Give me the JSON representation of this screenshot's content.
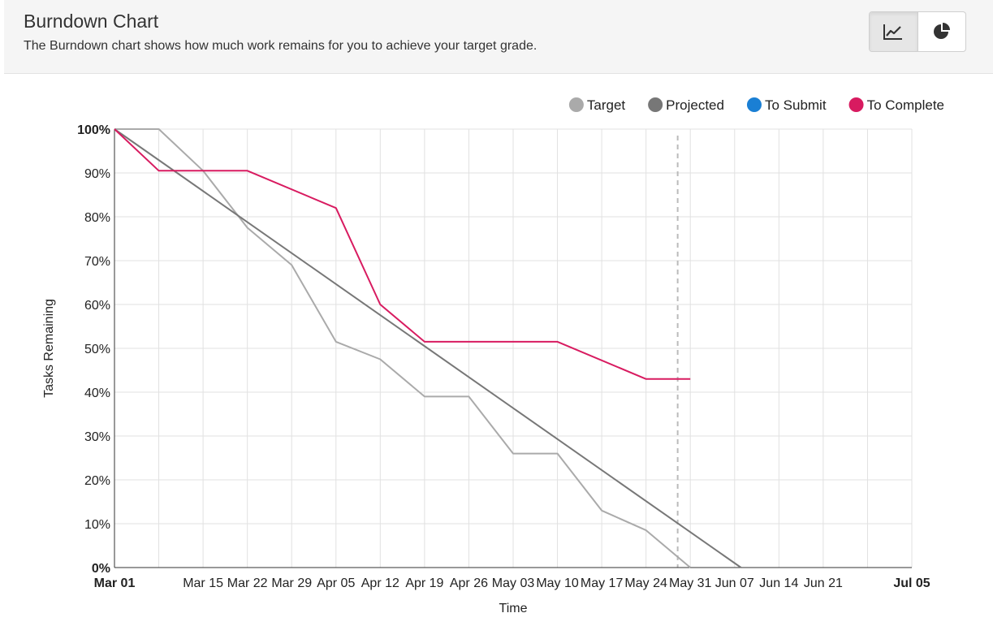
{
  "header": {
    "title": "Burndown Chart",
    "subtitle": "The Burndown chart shows how much work remains for you to achieve your target grade.",
    "view_buttons": [
      {
        "icon": "line-chart-icon",
        "active": true
      },
      {
        "icon": "pie-chart-icon",
        "active": false
      }
    ]
  },
  "chart_data": {
    "type": "line",
    "xlabel": "Time",
    "ylabel": "Tasks Remaining",
    "x_range": [
      "2021-03-01",
      "2021-07-05"
    ],
    "y_range": [
      0,
      100
    ],
    "y_ticks": [
      "0%",
      "10%",
      "20%",
      "30%",
      "40%",
      "50%",
      "60%",
      "70%",
      "80%",
      "90%",
      "100%"
    ],
    "x_ticks": [
      {
        "date": "2021-03-01",
        "label": "Mar 01",
        "bold": true
      },
      {
        "date": "2021-03-08",
        "label": ""
      },
      {
        "date": "2021-03-15",
        "label": "Mar 15"
      },
      {
        "date": "2021-03-22",
        "label": "Mar 22"
      },
      {
        "date": "2021-03-29",
        "label": "Mar 29"
      },
      {
        "date": "2021-04-05",
        "label": "Apr 05"
      },
      {
        "date": "2021-04-12",
        "label": "Apr 12"
      },
      {
        "date": "2021-04-19",
        "label": "Apr 19"
      },
      {
        "date": "2021-04-26",
        "label": "Apr 26"
      },
      {
        "date": "2021-05-03",
        "label": "May 03"
      },
      {
        "date": "2021-05-10",
        "label": "May 10"
      },
      {
        "date": "2021-05-17",
        "label": "May 17"
      },
      {
        "date": "2021-05-24",
        "label": "May 24"
      },
      {
        "date": "2021-05-31",
        "label": "May 31"
      },
      {
        "date": "2021-06-07",
        "label": "Jun 07"
      },
      {
        "date": "2021-06-14",
        "label": "Jun 14"
      },
      {
        "date": "2021-06-21",
        "label": "Jun 21"
      },
      {
        "date": "2021-06-28",
        "label": ""
      },
      {
        "date": "2021-07-05",
        "label": "Jul 05",
        "bold": true
      }
    ],
    "grid": true,
    "today_marker": "2021-05-29",
    "legend_position": "top-right",
    "series": [
      {
        "name": "Target",
        "color": "#aaaaaa",
        "points": [
          [
            "2021-03-01",
            100
          ],
          [
            "2021-03-08",
            100
          ],
          [
            "2021-03-15",
            90.5
          ],
          [
            "2021-03-22",
            77.5
          ],
          [
            "2021-03-29",
            69
          ],
          [
            "2021-04-05",
            51.5
          ],
          [
            "2021-04-12",
            47.5
          ],
          [
            "2021-04-19",
            39
          ],
          [
            "2021-04-26",
            39
          ],
          [
            "2021-05-03",
            26
          ],
          [
            "2021-05-10",
            26
          ],
          [
            "2021-05-17",
            13
          ],
          [
            "2021-05-24",
            8.5
          ],
          [
            "2021-05-31",
            0
          ]
        ]
      },
      {
        "name": "Projected",
        "color": "#777777",
        "points": [
          [
            "2021-03-01",
            100
          ],
          [
            "2021-06-08",
            0
          ]
        ]
      },
      {
        "name": "To Submit",
        "color": "#1a7fd4",
        "points": []
      },
      {
        "name": "To Complete",
        "color": "#d81b60",
        "points": [
          [
            "2021-03-01",
            100
          ],
          [
            "2021-03-08",
            90.5
          ],
          [
            "2021-03-22",
            90.5
          ],
          [
            "2021-04-05",
            82
          ],
          [
            "2021-04-12",
            60
          ],
          [
            "2021-04-19",
            51.5
          ],
          [
            "2021-05-10",
            51.5
          ],
          [
            "2021-05-24",
            43
          ],
          [
            "2021-05-31",
            43
          ]
        ]
      }
    ]
  }
}
